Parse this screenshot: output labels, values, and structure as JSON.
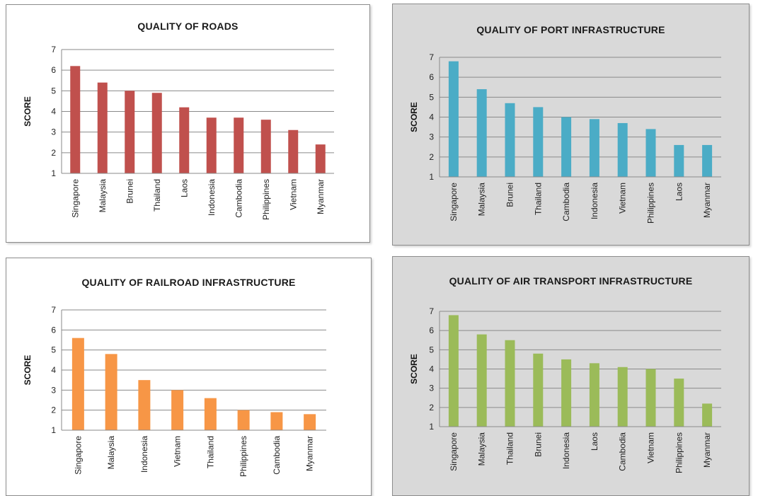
{
  "chart_data": [
    {
      "type": "bar",
      "title": "QUALITY OF ROADS",
      "ylabel": "SCORE",
      "xlabel": "",
      "ylim": [
        1,
        7
      ],
      "yticks": [
        1,
        2,
        3,
        4,
        5,
        6,
        7
      ],
      "grid": true,
      "color": "#c0504d",
      "categories": [
        "Singapore",
        "Malaysia",
        "Brunei",
        "Thailand",
        "Laos",
        "Indonesia",
        "Cambodia",
        "Philippines",
        "Vietnam",
        "Myanmar"
      ],
      "values": [
        6.2,
        5.4,
        5.0,
        4.9,
        4.2,
        3.7,
        3.7,
        3.6,
        3.1,
        2.4
      ]
    },
    {
      "type": "bar",
      "title": "QUALITY OF PORT INFRASTRUCTURE",
      "ylabel": "SCORE",
      "xlabel": "",
      "ylim": [
        1,
        7
      ],
      "yticks": [
        1,
        2,
        3,
        4,
        5,
        6,
        7
      ],
      "grid": true,
      "color": "#4bacc6",
      "categories": [
        "Singapore",
        "Malaysia",
        "Brunei",
        "Thailand",
        "Cambodia",
        "Indonesia",
        "Vietnam",
        "Philippines",
        "Laos",
        "Myanmar"
      ],
      "values": [
        6.8,
        5.4,
        4.7,
        4.5,
        4.0,
        3.9,
        3.7,
        3.4,
        2.6,
        2.6
      ]
    },
    {
      "type": "bar",
      "title": "QUALITY OF RAILROAD INFRASTRUCTURE",
      "ylabel": "SCORE",
      "xlabel": "",
      "ylim": [
        1,
        7
      ],
      "yticks": [
        1,
        2,
        3,
        4,
        5,
        6,
        7
      ],
      "grid": true,
      "color": "#f79646",
      "categories": [
        "Singapore",
        "Malaysia",
        "Indonesia",
        "Vietnam",
        "Thailand",
        "Philippines",
        "Cambodia",
        "Myanmar"
      ],
      "values": [
        5.6,
        4.8,
        3.5,
        3.0,
        2.6,
        2.0,
        1.9,
        1.8
      ]
    },
    {
      "type": "bar",
      "title": "QUALITY OF AIR TRANSPORT INFRASTRUCTURE",
      "ylabel": "SCORE",
      "xlabel": "",
      "ylim": [
        1,
        7
      ],
      "yticks": [
        1,
        2,
        3,
        4,
        5,
        6,
        7
      ],
      "grid": true,
      "color": "#9bbb59",
      "categories": [
        "Singapore",
        "Malaysia",
        "Thailand",
        "Brunei",
        "Indonesia",
        "Laos",
        "Cambodia",
        "Vietnam",
        "Philippines",
        "Myanmar"
      ],
      "values": [
        6.8,
        5.8,
        5.5,
        4.8,
        4.5,
        4.3,
        4.1,
        4.0,
        3.5,
        2.2
      ]
    }
  ]
}
